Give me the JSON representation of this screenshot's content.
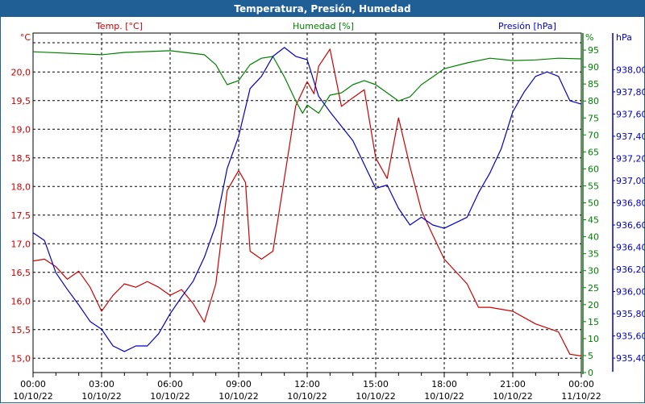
{
  "window": {
    "title": "Temperatura, Presión, Humedad"
  },
  "chart_data": {
    "type": "line",
    "title": "Temperatura, Presión, Humedad",
    "x_unit": "hours since 10/10/22 00:00",
    "xlim": [
      0,
      24
    ],
    "x_ticks": [
      {
        "h": 0,
        "time": "00:00",
        "date": "10/10/22"
      },
      {
        "h": 3,
        "time": "03:00",
        "date": "10/10/22"
      },
      {
        "h": 6,
        "time": "06:00",
        "date": "10/10/22"
      },
      {
        "h": 9,
        "time": "09:00",
        "date": "10/10/22"
      },
      {
        "h": 12,
        "time": "12:00",
        "date": "10/10/22"
      },
      {
        "h": 15,
        "time": "15:00",
        "date": "10/10/22"
      },
      {
        "h": 18,
        "time": "18:00",
        "date": "10/10/22"
      },
      {
        "h": 21,
        "time": "21:00",
        "date": "10/10/22"
      },
      {
        "h": 24,
        "time": "00:00",
        "date": "11/10/22"
      }
    ],
    "grid": true,
    "axes": {
      "temp": {
        "label": "Temp. [°C]",
        "unit": "°C",
        "color": "#cc0000",
        "ylim": [
          14.75,
          20.68
        ],
        "ticks": [
          "15,0",
          "15,5",
          "16,0",
          "16,5",
          "17,0",
          "17,5",
          "18,0",
          "18,5",
          "19,0",
          "19,5",
          "20,0"
        ],
        "tick_values": [
          15.0,
          15.5,
          16.0,
          16.5,
          17.0,
          17.5,
          18.0,
          18.5,
          19.0,
          19.5,
          20.0
        ]
      },
      "hum": {
        "label": "Humedad [%]",
        "unit": "%",
        "color": "#008000",
        "ylim": [
          0,
          100
        ],
        "ticks": [
          "0",
          "5",
          "10",
          "15",
          "20",
          "25",
          "30",
          "35",
          "40",
          "45",
          "50",
          "55",
          "60",
          "65",
          "70",
          "75",
          "80",
          "85",
          "90",
          "95"
        ],
        "tick_values": [
          0,
          5,
          10,
          15,
          20,
          25,
          30,
          35,
          40,
          45,
          50,
          55,
          60,
          65,
          70,
          75,
          80,
          85,
          90,
          95
        ]
      },
      "pres": {
        "label": "Presión [hPa]",
        "unit": "hPa",
        "color": "#0000cc",
        "ylim": [
          935.27,
          938.33
        ],
        "ticks": [
          "935,40",
          "935,60",
          "935,80",
          "936,00",
          "936,20",
          "936,40",
          "936,60",
          "936,80",
          "937,00",
          "937,20",
          "937,40",
          "937,60",
          "937,80",
          "938,00"
        ],
        "tick_values": [
          935.4,
          935.6,
          935.8,
          936.0,
          936.2,
          936.4,
          936.6,
          936.8,
          937.0,
          937.2,
          937.4,
          937.6,
          937.8,
          938.0
        ]
      }
    },
    "series": [
      {
        "name": "Temp. [°C]",
        "axis": "temp",
        "color": "#cc0000",
        "x": [
          0,
          0.5,
          1,
          1.5,
          2,
          2.5,
          3,
          3.5,
          4,
          4.5,
          5,
          5.5,
          6,
          6.5,
          7,
          7.5,
          8,
          8.5,
          9,
          9.3,
          9.5,
          10,
          10.5,
          11,
          11.5,
          12,
          12.3,
          12.5,
          13,
          13.5,
          14,
          14.5,
          15,
          15.5,
          16,
          16.5,
          17,
          17.5,
          18,
          19,
          19.5,
          20,
          21,
          22,
          23,
          23.5,
          24
        ],
        "y": [
          16.7,
          16.73,
          16.6,
          16.38,
          16.52,
          16.24,
          15.82,
          16.1,
          16.3,
          16.24,
          16.34,
          16.24,
          16.1,
          16.2,
          15.96,
          15.63,
          16.3,
          17.93,
          18.28,
          18.07,
          16.87,
          16.73,
          16.87,
          18.14,
          19.41,
          19.83,
          19.62,
          20.1,
          20.4,
          19.4,
          19.55,
          19.69,
          18.5,
          18.14,
          19.2,
          18.35,
          17.58,
          17.15,
          16.73,
          16.3,
          15.89,
          15.89,
          15.82,
          15.6,
          15.46,
          15.07,
          15.04
        ]
      },
      {
        "name": "Humedad [%]",
        "axis": "hum",
        "color": "#008000",
        "x": [
          0,
          3,
          4,
          6,
          7.5,
          8,
          8.5,
          9,
          9.5,
          10,
          10.5,
          11,
          11.5,
          11.8,
          12,
          12.5,
          13,
          13.5,
          14,
          14.5,
          15,
          16,
          16.5,
          17,
          17.5,
          18,
          19,
          20,
          21,
          22,
          23,
          24
        ],
        "y": [
          94.5,
          93.6,
          94.3,
          94.8,
          93.6,
          90.7,
          84.8,
          86.0,
          90.7,
          92.6,
          93.1,
          87.1,
          80.0,
          76.4,
          78.8,
          76.4,
          81.7,
          82.4,
          84.8,
          86.0,
          84.8,
          80.0,
          81.2,
          84.8,
          87.1,
          89.5,
          91.2,
          92.6,
          91.9,
          92.1,
          92.6,
          92.4
        ]
      },
      {
        "name": "Presión [hPa]",
        "axis": "pres",
        "color": "#0000cc",
        "x": [
          0,
          0.5,
          1,
          1.5,
          2,
          2.5,
          3,
          3.5,
          4,
          4.5,
          5,
          5.5,
          6,
          6.5,
          7,
          7.5,
          8,
          8.5,
          9,
          9.5,
          10,
          10.5,
          11,
          11.5,
          12,
          12.5,
          13,
          14,
          15,
          15.5,
          16,
          16.5,
          17,
          17.5,
          18,
          19,
          19.5,
          20,
          20.5,
          21,
          21.5,
          22,
          22.5,
          23,
          23.5,
          24
        ],
        "y": [
          936.53,
          936.46,
          936.17,
          936.02,
          935.88,
          935.73,
          935.66,
          935.51,
          935.46,
          935.51,
          935.51,
          935.62,
          935.8,
          935.95,
          936.09,
          936.31,
          936.6,
          937.11,
          937.4,
          937.83,
          937.94,
          938.12,
          938.2,
          938.12,
          938.09,
          937.76,
          937.62,
          937.36,
          936.93,
          936.96,
          936.75,
          936.6,
          936.67,
          936.6,
          936.57,
          936.67,
          936.89,
          937.07,
          937.29,
          937.62,
          937.8,
          937.94,
          937.98,
          937.94,
          937.72,
          937.69
        ]
      }
    ]
  }
}
